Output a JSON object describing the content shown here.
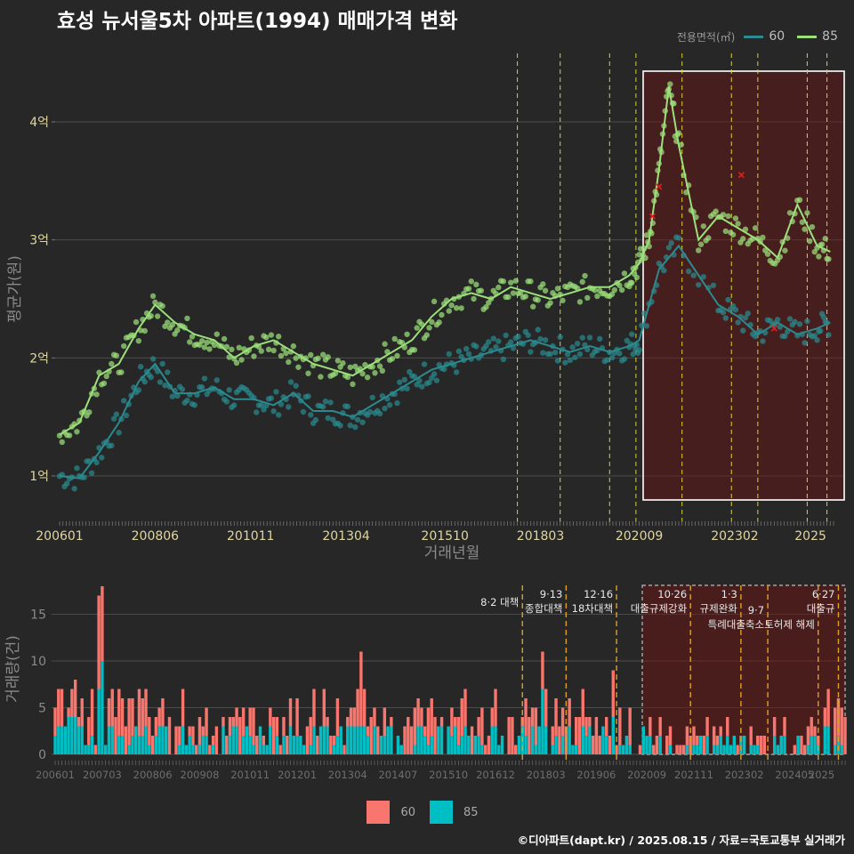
{
  "title": "효성 뉴서울5차 아파트(1994) 매매가격 변화",
  "legend_top": {
    "label": "전용면적(㎡)",
    "items": [
      {
        "name": "60",
        "color": "#2a8a8f"
      },
      {
        "name": "85",
        "color": "#9be07a"
      }
    ]
  },
  "legend_bottom": {
    "items": [
      {
        "name": "60",
        "color": "#f8766d"
      },
      {
        "name": "85",
        "color": "#00bfc4"
      }
    ]
  },
  "credit": "©디아파트(dapt.kr) / 2025.08.15 / 자료=국토교통부 실거래가",
  "chart_data": [
    {
      "type": "line",
      "xlabel": "거래년월",
      "ylabel": "평균가(원)",
      "x_ticks": [
        "200601",
        "200806",
        "201011",
        "201304",
        "201510",
        "201803",
        "202009",
        "202302",
        "2025"
      ],
      "y_ticks": [
        "1억",
        "2억",
        "3억",
        "4억"
      ],
      "ylim": [
        0.65,
        4.6
      ],
      "y_unit": "억",
      "highlight_range": [
        "201908",
        "202507"
      ],
      "policy_lines": [
        "2017-08",
        "2018-09",
        "2019-12",
        "2020-08",
        "2021-10",
        "2023-01",
        "2023-09",
        "2024-12",
        "2025-06"
      ],
      "series": [
        {
          "name": "60",
          "x": [
            "2006-01",
            "2006-07",
            "2007-01",
            "2007-07",
            "2008-01",
            "2008-06",
            "2008-12",
            "2009-06",
            "2009-12",
            "2010-06",
            "2010-12",
            "2011-06",
            "2011-12",
            "2012-06",
            "2012-12",
            "2013-06",
            "2013-12",
            "2014-06",
            "2014-12",
            "2015-06",
            "2015-12",
            "2016-06",
            "2016-12",
            "2017-06",
            "2017-12",
            "2018-06",
            "2018-12",
            "2019-06",
            "2019-12",
            "2020-06",
            "2020-09",
            "2021-03",
            "2021-09",
            "2022-09",
            "2023-03",
            "2023-09",
            "2024-03",
            "2024-09",
            "2025-03",
            "2025-07"
          ],
          "y": [
            1.0,
            0.98,
            1.2,
            1.45,
            1.8,
            1.95,
            1.7,
            1.7,
            1.75,
            1.65,
            1.65,
            1.6,
            1.7,
            1.55,
            1.55,
            1.5,
            1.6,
            1.7,
            1.8,
            1.9,
            1.95,
            2.0,
            2.05,
            2.1,
            2.15,
            2.1,
            2.05,
            2.1,
            2.05,
            2.1,
            2.15,
            2.75,
            2.95,
            2.45,
            2.35,
            2.2,
            2.3,
            2.2,
            2.25,
            2.3
          ]
        },
        {
          "name": "85",
          "x": [
            "2006-01",
            "2006-07",
            "2007-01",
            "2007-07",
            "2008-01",
            "2008-06",
            "2008-12",
            "2009-06",
            "2009-12",
            "2010-06",
            "2010-12",
            "2011-06",
            "2011-12",
            "2012-06",
            "2012-12",
            "2013-06",
            "2013-12",
            "2014-06",
            "2014-12",
            "2015-06",
            "2015-12",
            "2016-06",
            "2016-12",
            "2017-06",
            "2017-12",
            "2018-06",
            "2018-12",
            "2019-06",
            "2019-12",
            "2020-06",
            "2020-09",
            "2020-12",
            "2021-03",
            "2021-06",
            "2021-09",
            "2022-03",
            "2022-09",
            "2023-03",
            "2023-09",
            "2024-03",
            "2024-09",
            "2025-03",
            "2025-07"
          ],
          "y": [
            1.35,
            1.45,
            1.85,
            1.95,
            2.25,
            2.45,
            2.3,
            2.2,
            2.15,
            2.0,
            2.1,
            2.15,
            2.05,
            1.95,
            1.9,
            1.85,
            1.95,
            2.05,
            2.15,
            2.35,
            2.5,
            2.55,
            2.5,
            2.6,
            2.55,
            2.5,
            2.55,
            2.6,
            2.6,
            2.7,
            2.8,
            3.0,
            3.6,
            4.3,
            3.8,
            3.0,
            3.2,
            3.1,
            3.0,
            2.85,
            3.3,
            2.95,
            2.9
          ]
        }
      ],
      "anomaly_points": [
        {
          "x": "2021-03",
          "y": 3.45
        },
        {
          "x": "2021-01",
          "y": 3.2
        },
        {
          "x": "2023-04",
          "y": 3.55
        },
        {
          "x": "2024-02",
          "y": 2.25
        }
      ]
    },
    {
      "type": "bar",
      "xlabel": "",
      "ylabel": "거래량(건)",
      "x_ticks": [
        "200601",
        "200703",
        "200806",
        "200908",
        "201011",
        "201201",
        "201304",
        "201407",
        "201510",
        "201612",
        "201803",
        "201906",
        "202009",
        "202111",
        "202302",
        "202405",
        "2025"
      ],
      "y_ticks": [
        "0",
        "5",
        "10",
        "15"
      ],
      "ylim": [
        0,
        18
      ],
      "stacked": true,
      "series_names": [
        "60",
        "85"
      ],
      "sample_values": [
        {
          "month": "2006-09",
          "60": 3,
          "85": 3
        },
        {
          "month": "2007-02",
          "60": 10,
          "85": 7
        },
        {
          "month": "2007-03",
          "60": 8,
          "85": 10
        },
        {
          "month": "2008-04",
          "60": 4,
          "85": 3
        },
        {
          "month": "2013-08",
          "60": 8,
          "85": 3
        },
        {
          "month": "2018-02",
          "60": 4,
          "85": 7
        },
        {
          "month": "2019-11",
          "60": 5,
          "85": 4
        },
        {
          "month": "2025-06",
          "60": 4,
          "85": 2
        }
      ],
      "annotations": [
        {
          "date": "2017-08",
          "lines": [
            "8·2 대책"
          ]
        },
        {
          "date": "2018-09",
          "lines": [
            "9·13",
            "종합대책"
          ]
        },
        {
          "date": "2019-12",
          "lines": [
            "12·16",
            "18차대책"
          ]
        },
        {
          "date": "2021-10",
          "lines": [
            "10·26",
            "대출규제강화"
          ]
        },
        {
          "date": "2023-01",
          "lines": [
            "1·3",
            "규제완화"
          ]
        },
        {
          "date": "2023-09",
          "lines": [
            "9·7",
            "특례대출축소"
          ]
        },
        {
          "date": "2024-12",
          "lines": [
            "",
            "토허제 해제"
          ]
        },
        {
          "date": "2025-06",
          "lines": [
            "6·27",
            "대출규"
          ]
        }
      ]
    }
  ]
}
